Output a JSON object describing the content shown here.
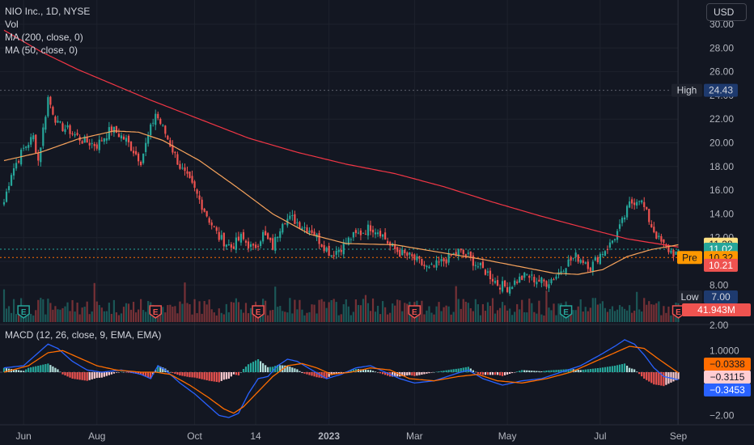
{
  "header": {
    "symbol_line": "NIO Inc., 1D, NYSE",
    "vol_label": "Vol",
    "ma200_label": "MA (200, close, 0)",
    "ma50_label": "MA (50, close, 0)",
    "currency_button": "USD"
  },
  "macd_pane": {
    "label": "MACD (12, 26, close, 9, EMA, EMA)"
  },
  "colors": {
    "background": "#131722",
    "up": "#26a69a",
    "down": "#ef5350",
    "ma200": "#f23645",
    "ma50": "#f7a35c",
    "macd": "#2962ff",
    "signal": "#ff6d00",
    "grid": "#1e222d",
    "axis_text": "#b2b5be"
  },
  "chart_data": [
    {
      "type": "candlestick",
      "title": "NIO Inc., 1D, NYSE",
      "y_axis_ticks": [
        "30.00",
        "28.00",
        "26.00",
        "24.00",
        "22.00",
        "20.00",
        "18.00",
        "16.00",
        "14.00",
        "12.00",
        "10.00",
        "8.00"
      ],
      "ylim": [
        7,
        30.2
      ],
      "x_axis_ticks": [
        "Jun",
        "Aug",
        "Oct",
        "14",
        "2023",
        "Mar",
        "May",
        "Jul",
        "Sep"
      ],
      "close_anchors": [
        [
          0,
          15.0
        ],
        [
          3,
          17.5
        ],
        [
          8,
          19.5
        ],
        [
          12,
          20.5
        ],
        [
          14,
          18.5
        ],
        [
          18,
          23.8
        ],
        [
          22,
          21.5
        ],
        [
          27,
          21.0
        ],
        [
          32,
          20.2
        ],
        [
          38,
          19.8
        ],
        [
          44,
          21.2
        ],
        [
          50,
          20.2
        ],
        [
          56,
          18.5
        ],
        [
          62,
          22.5
        ],
        [
          66,
          20.8
        ],
        [
          72,
          18.0
        ],
        [
          78,
          16.0
        ],
        [
          84,
          13.5
        ],
        [
          88,
          12.0
        ],
        [
          93,
          11.2
        ],
        [
          97,
          12.0
        ],
        [
          102,
          11.0
        ],
        [
          106,
          12.3
        ],
        [
          110,
          11.2
        ],
        [
          114,
          13.5
        ],
        [
          118,
          13.6
        ],
        [
          122,
          13.0
        ],
        [
          126,
          12.6
        ],
        [
          130,
          11.5
        ],
        [
          134,
          10.6
        ],
        [
          138,
          11.2
        ],
        [
          142,
          12.0
        ],
        [
          146,
          12.4
        ],
        [
          150,
          12.9
        ],
        [
          154,
          12.5
        ],
        [
          158,
          11.3
        ],
        [
          162,
          10.7
        ],
        [
          166,
          10.4
        ],
        [
          170,
          9.9
        ],
        [
          174,
          9.3
        ],
        [
          178,
          9.8
        ],
        [
          182,
          10.3
        ],
        [
          186,
          10.8
        ],
        [
          190,
          10.4
        ],
        [
          194,
          9.6
        ],
        [
          198,
          9.0
        ],
        [
          202,
          8.1
        ],
        [
          206,
          7.8
        ],
        [
          210,
          8.4
        ],
        [
          214,
          8.8
        ],
        [
          218,
          8.4
        ],
        [
          222,
          8.2
        ],
        [
          226,
          8.8
        ],
        [
          230,
          9.8
        ],
        [
          234,
          10.4
        ],
        [
          238,
          10.0
        ],
        [
          240,
          9.5
        ],
        [
          244,
          10.6
        ],
        [
          248,
          11.4
        ],
        [
          252,
          12.8
        ],
        [
          256,
          14.8
        ],
        [
          260,
          15.4
        ],
        [
          262,
          14.5
        ],
        [
          265,
          13.0
        ],
        [
          268,
          11.8
        ],
        [
          271,
          11.1
        ],
        [
          274,
          10.7
        ],
        [
          276,
          10.6
        ]
      ],
      "close_noise": [
        0.42,
        0.38,
        0.05
      ],
      "ma200_points": [
        [
          0,
          29.5
        ],
        [
          15,
          27.7
        ],
        [
          30,
          26.2
        ],
        [
          45,
          24.9
        ],
        [
          60,
          23.6
        ],
        [
          80,
          22.0
        ],
        [
          100,
          20.4
        ],
        [
          120,
          19.2
        ],
        [
          140,
          18.2
        ],
        [
          160,
          17.4
        ],
        [
          180,
          16.3
        ],
        [
          200,
          15.0
        ],
        [
          220,
          13.8
        ],
        [
          240,
          12.7
        ],
        [
          255,
          11.9
        ],
        [
          270,
          11.4
        ],
        [
          276,
          11.2
        ]
      ],
      "ma50_points": [
        [
          0,
          18.5
        ],
        [
          15,
          19.2
        ],
        [
          30,
          20.3
        ],
        [
          45,
          21.0
        ],
        [
          55,
          20.9
        ],
        [
          65,
          20.2
        ],
        [
          80,
          18.5
        ],
        [
          95,
          16.3
        ],
        [
          110,
          14.0
        ],
        [
          125,
          12.3
        ],
        [
          140,
          11.5
        ],
        [
          160,
          11.4
        ],
        [
          180,
          10.7
        ],
        [
          195,
          10.2
        ],
        [
          210,
          9.6
        ],
        [
          225,
          9.0
        ],
        [
          235,
          8.9
        ],
        [
          245,
          9.3
        ],
        [
          255,
          10.4
        ],
        [
          265,
          11.0
        ],
        [
          276,
          11.4
        ]
      ],
      "volume_axis_tick": "2.00",
      "earnings_markers": [
        {
          "bar": 8,
          "kind": "up",
          "label": "E"
        },
        {
          "bar": 62,
          "kind": "down",
          "label": "E"
        },
        {
          "bar": 104,
          "kind": "down",
          "label": "E"
        },
        {
          "bar": 168,
          "kind": "down",
          "label": "E"
        },
        {
          "bar": 230,
          "kind": "up",
          "label": "E"
        },
        {
          "bar": 276,
          "kind": "down",
          "label": "E"
        }
      ],
      "price_labels": [
        {
          "label": "High",
          "value": "24.43",
          "price": 24.43,
          "kind": "high"
        },
        {
          "label": "",
          "value": "11.38",
          "price": 11.38,
          "kind": "ma50"
        },
        {
          "label": "",
          "value": "11.02",
          "price": 11.02,
          "kind": "up"
        },
        {
          "label": "Pre",
          "value": "10.32",
          "price": 10.32,
          "kind": "pre"
        },
        {
          "label": "",
          "value": "10.21",
          "price": 10.21,
          "kind": "down"
        },
        {
          "label": "Low",
          "value": "7.00",
          "price": 7.0,
          "kind": "low"
        },
        {
          "label": "",
          "value": "41.943M",
          "price": null,
          "kind": "volume"
        }
      ]
    },
    {
      "type": "line",
      "title": "MACD (12, 26, close, 9, EMA, EMA)",
      "y_axis_ticks": [
        "2.00",
        "1.0000",
        "−2.00"
      ],
      "ylim": [
        -2.35,
        2.15
      ],
      "macd_points": [
        [
          0,
          0.2
        ],
        [
          8,
          0.3
        ],
        [
          14,
          0.9
        ],
        [
          18,
          1.3
        ],
        [
          22,
          1.1
        ],
        [
          28,
          0.5
        ],
        [
          34,
          0.1
        ],
        [
          40,
          0.0
        ],
        [
          48,
          0.1
        ],
        [
          56,
          -0.1
        ],
        [
          60,
          -0.3
        ],
        [
          63,
          0.3
        ],
        [
          66,
          0.1
        ],
        [
          72,
          -0.5
        ],
        [
          78,
          -1.0
        ],
        [
          84,
          -1.6
        ],
        [
          88,
          -2.0
        ],
        [
          92,
          -2.1
        ],
        [
          96,
          -1.9
        ],
        [
          100,
          -1.0
        ],
        [
          104,
          -0.3
        ],
        [
          108,
          -0.2
        ],
        [
          112,
          0.3
        ],
        [
          116,
          0.6
        ],
        [
          120,
          0.5
        ],
        [
          126,
          0.1
        ],
        [
          132,
          -0.3
        ],
        [
          138,
          -0.1
        ],
        [
          144,
          0.2
        ],
        [
          150,
          0.3
        ],
        [
          156,
          0.0
        ],
        [
          162,
          -0.3
        ],
        [
          168,
          -0.5
        ],
        [
          176,
          -0.4
        ],
        [
          184,
          -0.1
        ],
        [
          190,
          0.1
        ],
        [
          196,
          -0.3
        ],
        [
          204,
          -0.6
        ],
        [
          212,
          -0.4
        ],
        [
          220,
          -0.3
        ],
        [
          228,
          0.0
        ],
        [
          236,
          0.3
        ],
        [
          244,
          0.8
        ],
        [
          250,
          1.2
        ],
        [
          254,
          1.5
        ],
        [
          258,
          1.3
        ],
        [
          262,
          0.8
        ],
        [
          266,
          0.2
        ],
        [
          270,
          -0.2
        ],
        [
          276,
          -0.35
        ]
      ],
      "signal_points": [
        [
          0,
          0.0
        ],
        [
          10,
          0.3
        ],
        [
          18,
          0.9
        ],
        [
          24,
          1.0
        ],
        [
          30,
          0.7
        ],
        [
          38,
          0.3
        ],
        [
          46,
          0.1
        ],
        [
          56,
          0.0
        ],
        [
          62,
          0.0
        ],
        [
          68,
          -0.1
        ],
        [
          76,
          -0.6
        ],
        [
          84,
          -1.2
        ],
        [
          90,
          -1.7
        ],
        [
          94,
          -1.9
        ],
        [
          98,
          -1.6
        ],
        [
          104,
          -0.9
        ],
        [
          110,
          -0.2
        ],
        [
          116,
          0.3
        ],
        [
          122,
          0.4
        ],
        [
          128,
          0.2
        ],
        [
          134,
          -0.1
        ],
        [
          142,
          0.0
        ],
        [
          150,
          0.2
        ],
        [
          158,
          0.1
        ],
        [
          166,
          -0.3
        ],
        [
          176,
          -0.4
        ],
        [
          186,
          -0.2
        ],
        [
          194,
          -0.1
        ],
        [
          202,
          -0.4
        ],
        [
          212,
          -0.5
        ],
        [
          222,
          -0.3
        ],
        [
          232,
          0.0
        ],
        [
          242,
          0.5
        ],
        [
          250,
          0.9
        ],
        [
          256,
          1.2
        ],
        [
          262,
          1.1
        ],
        [
          268,
          0.6
        ],
        [
          276,
          -0.03
        ]
      ],
      "value_labels": [
        {
          "value": "−0.0338",
          "num": -0.0338,
          "kind": "signal"
        },
        {
          "value": "−0.3115",
          "num": -0.3115,
          "kind": "hist"
        },
        {
          "value": "−0.3453",
          "num": -0.3453,
          "kind": "macd"
        }
      ]
    }
  ]
}
